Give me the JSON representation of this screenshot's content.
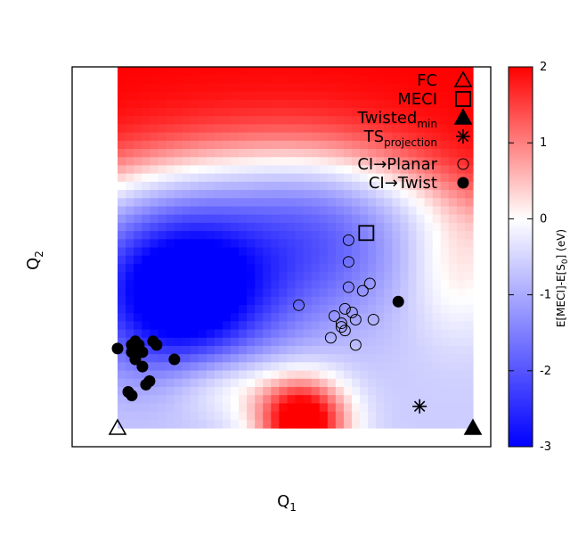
{
  "chart_data": {
    "type": "heatmap",
    "xlabel": "Q",
    "xlabel_sub": "1",
    "ylabel": "Q",
    "ylabel_sub": "2",
    "colorbar": {
      "label_parts": [
        "E[MECI]-E[S",
        "0",
        "] (eV)"
      ],
      "range": [
        -3,
        2
      ],
      "ticks": [
        "-3",
        "-2",
        "-1",
        "0",
        "1",
        "2"
      ],
      "colors": {
        "low": "#0000ff",
        "mid": "#ffffff",
        "high": "#ff0000"
      }
    },
    "heatmap": {
      "cols": 44,
      "rows": 44,
      "description_features": {
        "red_top_band": true,
        "white_arc": true,
        "blue_basin_left": true,
        "red_bump_bottom_center": true
      }
    },
    "legend": [
      {
        "label": "FC",
        "sub": "",
        "marker": "triangle-open"
      },
      {
        "label": "MECI",
        "sub": "",
        "marker": "square-open"
      },
      {
        "label": "Twisted",
        "sub": "min",
        "marker": "triangle-filled"
      },
      {
        "label": "TS",
        "sub": "projection",
        "marker": "asterisk"
      },
      {
        "label": "CI→Planar",
        "sub": "",
        "marker": "circle-open"
      },
      {
        "label": "CI→Twist",
        "sub": "",
        "marker": "circle-filled"
      }
    ],
    "series": [
      {
        "name": "FC",
        "marker": "triangle-open",
        "points": [
          [
            0.0,
            0.0
          ]
        ]
      },
      {
        "name": "MECI",
        "marker": "square-open",
        "points": [
          [
            0.7,
            0.54
          ]
        ]
      },
      {
        "name": "Twisted",
        "marker": "triangle-filled",
        "points": [
          [
            1.0,
            0.0
          ]
        ]
      },
      {
        "name": "TS",
        "marker": "asterisk",
        "points": [
          [
            0.85,
            0.06
          ]
        ]
      },
      {
        "name": "CI→Planar",
        "marker": "circle-open",
        "points": [
          [
            0.65,
            0.52
          ],
          [
            0.65,
            0.46
          ],
          [
            0.65,
            0.39
          ],
          [
            0.69,
            0.38
          ],
          [
            0.71,
            0.4
          ],
          [
            0.51,
            0.34
          ],
          [
            0.64,
            0.33
          ],
          [
            0.66,
            0.32
          ],
          [
            0.61,
            0.31
          ],
          [
            0.67,
            0.3
          ],
          [
            0.63,
            0.29
          ],
          [
            0.63,
            0.28
          ],
          [
            0.64,
            0.27
          ],
          [
            0.72,
            0.3
          ],
          [
            0.6,
            0.25
          ],
          [
            0.67,
            0.23
          ]
        ]
      },
      {
        "name": "CI→Twist",
        "marker": "circle-filled",
        "points": [
          [
            0.79,
            0.35
          ],
          [
            0.0,
            0.22
          ],
          [
            0.04,
            0.23
          ],
          [
            0.05,
            0.24
          ],
          [
            0.06,
            0.23
          ],
          [
            0.1,
            0.24
          ],
          [
            0.11,
            0.23
          ],
          [
            0.04,
            0.21
          ],
          [
            0.07,
            0.21
          ],
          [
            0.16,
            0.19
          ],
          [
            0.05,
            0.19
          ],
          [
            0.07,
            0.17
          ],
          [
            0.09,
            0.13
          ],
          [
            0.08,
            0.12
          ],
          [
            0.03,
            0.1
          ],
          [
            0.04,
            0.09
          ]
        ]
      }
    ]
  }
}
